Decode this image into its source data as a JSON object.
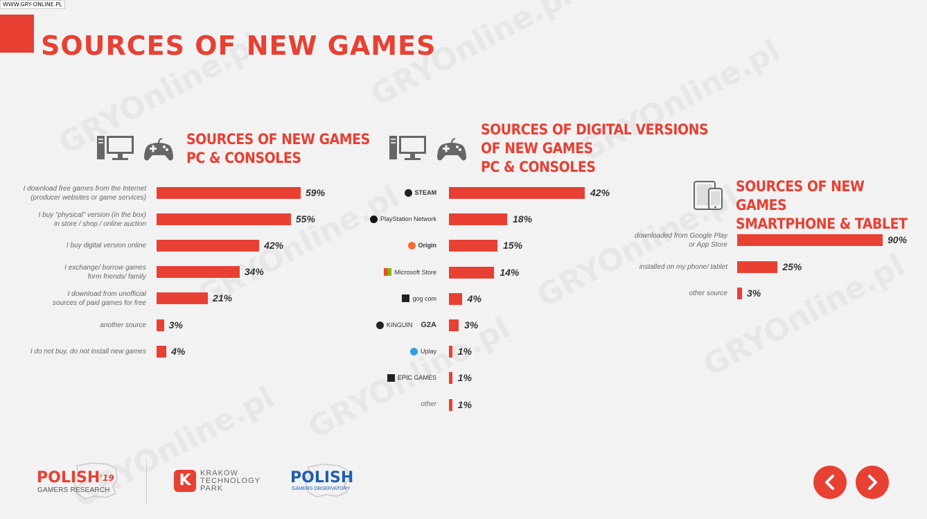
{
  "site_tag": "WWW.GRY-ONLINE.PL",
  "watermark": "GRYOnline.pl",
  "title": "SOURCES OF NEW GAMES",
  "colors": {
    "accent": "#e84033",
    "background": "#f2f2f2",
    "text": "#333333"
  },
  "sections": {
    "pc": {
      "title_lines": [
        "SOURCES OF NEW GAMES",
        "PC & CONSOLES"
      ],
      "icons": [
        "desktop-computer-icon",
        "gamepad-icon"
      ]
    },
    "digital": {
      "title_lines": [
        "SOURCES OF DIGITAL VERSIONS",
        "OF NEW GAMES",
        "PC & CONSOLES"
      ],
      "icons": [
        "desktop-computer-icon",
        "gamepad-icon"
      ]
    },
    "mobile": {
      "title_lines": [
        "SOURCES OF NEW GAMES",
        "SMARTPHONE & TABLET"
      ],
      "icons": [
        "tablet-smartphone-icon"
      ]
    }
  },
  "chart_data": [
    {
      "type": "bar",
      "orientation": "horizontal",
      "title": "SOURCES OF NEW GAMES PC & CONSOLES",
      "categories": [
        "I download free games from the Internet (producer websites  or game services)",
        "I buy  \"physical\" version (in the box) in store / shop / online auction",
        "I buy digital version online",
        "I exchange/ borrow games form friends/ family",
        "I download from  unofficial sources of paid games for free",
        "another source",
        "I do not buy, do not install new games"
      ],
      "label_lines": [
        [
          "I download free games from the Internet",
          "(producer websites  or game services)"
        ],
        [
          "I buy  \"physical\" version (in the box)",
          "in store / shop / online auction"
        ],
        [
          "I buy digital version online"
        ],
        [
          "I exchange/ borrow games",
          "form friends/ family"
        ],
        [
          "I download from  unofficial",
          "sources of paid games for free"
        ],
        [
          "another source"
        ],
        [
          "I do not buy, do not install new games"
        ]
      ],
      "values": [
        59,
        55,
        42,
        34,
        21,
        3,
        4
      ],
      "value_labels": [
        "59%",
        "55%",
        "42%",
        "34%",
        "21%",
        "3%",
        "4%"
      ],
      "unit": "%"
    },
    {
      "type": "bar",
      "orientation": "horizontal",
      "title": "SOURCES OF DIGITAL VERSIONS OF NEW GAMES PC & CONSOLES",
      "categories": [
        "STEAM",
        "PlayStation Network",
        "Origin",
        "Microsoft Store",
        "GOG.com",
        "KINGUIN / G2A",
        "Uplay",
        "EPIC GAMES",
        "other"
      ],
      "brands": [
        {
          "text": "STEAM",
          "icon": "steam-logo-icon"
        },
        {
          "text": "PlayStation Network",
          "icon": "playstation-logo-icon"
        },
        {
          "text": "Origin",
          "icon": "origin-logo-icon"
        },
        {
          "text": "Microsoft Store",
          "icon": "microsoft-logo-icon"
        },
        {
          "text": "gog com",
          "icon": "gog-logo-icon"
        },
        {
          "text": "KINGUIN",
          "text2": "G2A",
          "icon": "kinguin-logo-icon"
        },
        {
          "text": "Uplay",
          "icon": "uplay-logo-icon"
        },
        {
          "text": "EPIC GAMES",
          "icon": "epic-games-logo-icon"
        },
        {
          "text": "other",
          "icon": ""
        }
      ],
      "values": [
        42,
        18,
        15,
        14,
        4,
        3,
        1,
        1,
        1
      ],
      "value_labels": [
        "42%",
        "18%",
        "15%",
        "14%",
        "4%",
        "3%",
        "1%",
        "1%",
        "1%"
      ],
      "unit": "%"
    },
    {
      "type": "bar",
      "orientation": "horizontal",
      "title": "SOURCES OF NEW GAMES SMARTPHONE & TABLET",
      "categories": [
        "downloaded from Google Play or App Store",
        "installed on my phone/ tablet",
        "other source"
      ],
      "label_lines": [
        [
          "downloaded from Google Play",
          "or App Store"
        ],
        [
          "installed on my phone/ tablet"
        ],
        [
          "other source"
        ]
      ],
      "values": [
        90,
        25,
        3
      ],
      "value_labels": [
        "90%",
        "25%",
        "3%"
      ],
      "unit": "%"
    }
  ],
  "footer": {
    "pgr_polish": "POLISH",
    "pgr_year": "'19",
    "pgr_sub": "GAMERS RESEARCH",
    "ktp_lines": [
      "KRAKOW",
      "TECHNOLOGY",
      "PARK"
    ],
    "ktp_letter": "K",
    "pgo_polish": "POLISH",
    "pgo_sub": "GAMERS OBSERVATORY"
  },
  "nav": {
    "prev_icon": "chevron-left-icon",
    "next_icon": "chevron-right-icon"
  }
}
